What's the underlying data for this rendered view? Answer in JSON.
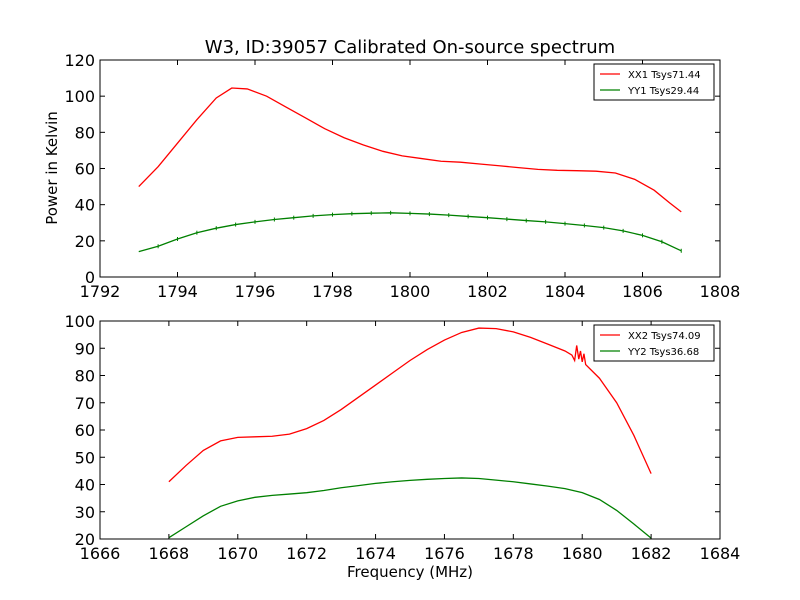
{
  "chart_data": [
    {
      "type": "line",
      "title": "W3, ID:39057 Calibrated On-source spectrum",
      "xlabel": "",
      "ylabel": "Power in Kelvin",
      "xlim": [
        1792,
        1808
      ],
      "ylim": [
        0,
        120
      ],
      "xticks": [
        "1792",
        "1794",
        "1796",
        "1798",
        "1800",
        "1802",
        "1804",
        "1806",
        "1808"
      ],
      "yticks": [
        "0",
        "20",
        "40",
        "60",
        "80",
        "100",
        "120"
      ],
      "legend_position": "top-right",
      "grid": false,
      "series": [
        {
          "name": "XX1 Tsys71.44",
          "color": "#ff0000",
          "points": [
            [
              1793.0,
              50
            ],
            [
              1793.5,
              61
            ],
            [
              1794.0,
              74
            ],
            [
              1794.5,
              87
            ],
            [
              1795.0,
              99
            ],
            [
              1795.4,
              104.5
            ],
            [
              1795.8,
              104
            ],
            [
              1796.3,
              100
            ],
            [
              1796.8,
              94
            ],
            [
              1797.3,
              88
            ],
            [
              1797.8,
              82
            ],
            [
              1798.3,
              77
            ],
            [
              1798.8,
              73
            ],
            [
              1799.3,
              69.5
            ],
            [
              1799.8,
              67
            ],
            [
              1800.3,
              65.5
            ],
            [
              1800.8,
              64
            ],
            [
              1801.3,
              63.5
            ],
            [
              1801.8,
              62.5
            ],
            [
              1802.3,
              61.5
            ],
            [
              1802.8,
              60.5
            ],
            [
              1803.3,
              59.5
            ],
            [
              1803.8,
              59
            ],
            [
              1804.3,
              58.8
            ],
            [
              1804.8,
              58.5
            ],
            [
              1805.3,
              57.5
            ],
            [
              1805.8,
              54
            ],
            [
              1806.3,
              48
            ],
            [
              1806.7,
              41
            ],
            [
              1807.0,
              36
            ]
          ]
        },
        {
          "name": "YY1 Tsys29.44",
          "color": "#008000",
          "points": [
            [
              1793.0,
              14
            ],
            [
              1793.5,
              17
            ],
            [
              1794.0,
              21
            ],
            [
              1794.5,
              24.5
            ],
            [
              1795.0,
              27
            ],
            [
              1795.5,
              29
            ],
            [
              1796.0,
              30.5
            ],
            [
              1796.5,
              31.8
            ],
            [
              1797.0,
              32.8
            ],
            [
              1797.5,
              33.8
            ],
            [
              1798.0,
              34.5
            ],
            [
              1798.5,
              35
            ],
            [
              1799.0,
              35.3
            ],
            [
              1799.5,
              35.5
            ],
            [
              1800.0,
              35.2
            ],
            [
              1800.5,
              34.8
            ],
            [
              1801.0,
              34.2
            ],
            [
              1801.5,
              33.5
            ],
            [
              1802.0,
              32.8
            ],
            [
              1802.5,
              32
            ],
            [
              1803.0,
              31.2
            ],
            [
              1803.5,
              30.5
            ],
            [
              1804.0,
              29.5
            ],
            [
              1804.5,
              28.5
            ],
            [
              1805.0,
              27.3
            ],
            [
              1805.5,
              25.5
            ],
            [
              1806.0,
              23
            ],
            [
              1806.5,
              19.5
            ],
            [
              1807.0,
              14.5
            ]
          ]
        }
      ]
    },
    {
      "type": "line",
      "title": "",
      "xlabel": "Frequency (MHz)",
      "ylabel": "",
      "xlim": [
        1666,
        1684
      ],
      "ylim": [
        20,
        100
      ],
      "xticks": [
        "1666",
        "1668",
        "1670",
        "1672",
        "1674",
        "1676",
        "1678",
        "1680",
        "1682",
        "1684"
      ],
      "yticks": [
        "20",
        "30",
        "40",
        "50",
        "60",
        "70",
        "80",
        "90",
        "100"
      ],
      "legend_position": "top-right",
      "grid": false,
      "series": [
        {
          "name": "XX2 Tsys74.09",
          "color": "#ff0000",
          "points": [
            [
              1668.0,
              41
            ],
            [
              1668.5,
              47
            ],
            [
              1669.0,
              52.5
            ],
            [
              1669.5,
              56
            ],
            [
              1670.0,
              57.3
            ],
            [
              1670.5,
              57.5
            ],
            [
              1671.0,
              57.7
            ],
            [
              1671.5,
              58.5
            ],
            [
              1672.0,
              60.5
            ],
            [
              1672.5,
              63.5
            ],
            [
              1673.0,
              67.5
            ],
            [
              1673.5,
              72
            ],
            [
              1674.0,
              76.5
            ],
            [
              1674.5,
              81
            ],
            [
              1675.0,
              85.5
            ],
            [
              1675.5,
              89.5
            ],
            [
              1676.0,
              93
            ],
            [
              1676.5,
              95.8
            ],
            [
              1677.0,
              97.4
            ],
            [
              1677.5,
              97.2
            ],
            [
              1678.0,
              96
            ],
            [
              1678.5,
              94
            ],
            [
              1679.0,
              91.5
            ],
            [
              1679.5,
              89
            ],
            [
              1679.7,
              87.5
            ],
            [
              1679.78,
              85.5
            ],
            [
              1679.84,
              91
            ],
            [
              1679.9,
              86
            ],
            [
              1679.95,
              89
            ],
            [
              1680.0,
              85
            ],
            [
              1680.05,
              88
            ],
            [
              1680.1,
              84
            ],
            [
              1680.5,
              79
            ],
            [
              1681.0,
              70
            ],
            [
              1681.5,
              58
            ],
            [
              1682.0,
              44
            ]
          ]
        },
        {
          "name": "YY2 Tsys36.68",
          "color": "#008000",
          "points": [
            [
              1668.0,
              20.5
            ],
            [
              1668.5,
              24.5
            ],
            [
              1669.0,
              28.5
            ],
            [
              1669.5,
              32
            ],
            [
              1670.0,
              34
            ],
            [
              1670.5,
              35.3
            ],
            [
              1671.0,
              36
            ],
            [
              1671.5,
              36.5
            ],
            [
              1672.0,
              37
            ],
            [
              1672.5,
              37.8
            ],
            [
              1673.0,
              38.8
            ],
            [
              1673.5,
              39.6
            ],
            [
              1674.0,
              40.4
            ],
            [
              1674.5,
              41
            ],
            [
              1675.0,
              41.5
            ],
            [
              1675.5,
              41.9
            ],
            [
              1676.0,
              42.2
            ],
            [
              1676.5,
              42.4
            ],
            [
              1677.0,
              42.2
            ],
            [
              1677.5,
              41.6
            ],
            [
              1678.0,
              41
            ],
            [
              1678.5,
              40.2
            ],
            [
              1679.0,
              39.4
            ],
            [
              1679.5,
              38.5
            ],
            [
              1680.0,
              37
            ],
            [
              1680.5,
              34.5
            ],
            [
              1681.0,
              30.5
            ],
            [
              1681.5,
              25.5
            ],
            [
              1682.0,
              20.3
            ]
          ]
        }
      ]
    }
  ]
}
